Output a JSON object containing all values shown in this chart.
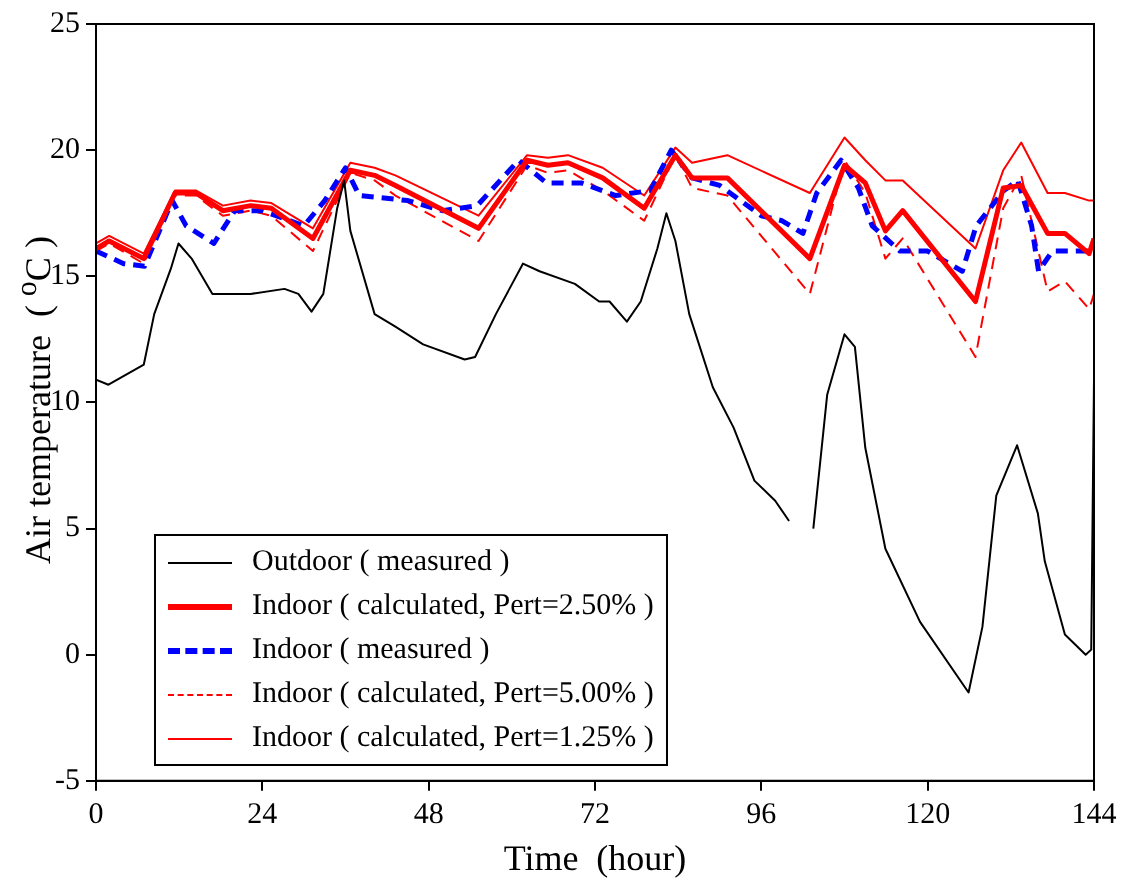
{
  "chart_data": {
    "type": "line",
    "xlabel": "Time  (hour)",
    "ylabel": "Air temperature  ( $^{o}$C )",
    "xlim": [
      0,
      144
    ],
    "xticks": [
      0,
      24,
      48,
      72,
      96,
      120,
      144
    ],
    "ylim": [
      -5,
      25
    ],
    "yticks": [
      -5,
      0,
      5,
      10,
      15,
      20,
      25
    ],
    "grid": false,
    "legend": "bottom left",
    "marker": "none",
    "series": [
      {
        "name": "Outdoor ( measured )",
        "color": "#000000",
        "line_style": "solid",
        "x": [
          0,
          1.8,
          6.9,
          8.4,
          10.8,
          11.9,
          13.8,
          16.8,
          22.3,
          27.2,
          29.2,
          31.1,
          32.8,
          34.8,
          35.8,
          36.7,
          40.2,
          43.2,
          47.2,
          53.2,
          54.7,
          57.7,
          61.6,
          64,
          69.1,
          72.6,
          74.1,
          76.6,
          78.6,
          81,
          82.3,
          83.6,
          85.6,
          89,
          92,
          95,
          98,
          100,
          101,
          103.5,
          105.5,
          108,
          109.5,
          111,
          113.9,
          118.9,
          125.9,
          127.9,
          129.9,
          132.9,
          135.9,
          136.9,
          139.8,
          142.8,
          143.6,
          144
        ],
        "values": [
          10.9,
          10.7,
          11.5,
          13.5,
          15.3,
          16.3,
          15.7,
          14.3,
          14.3,
          14.5,
          14.3,
          13.6,
          14.3,
          17.7,
          18.8,
          16.8,
          13.5,
          13,
          12.3,
          11.7,
          11.8,
          13.5,
          15.5,
          15.2,
          14.7,
          14,
          14,
          13.2,
          14,
          16.1,
          17.5,
          16.4,
          13.5,
          10.6,
          9,
          6.9,
          6.1,
          5.3,
          null,
          5,
          10.3,
          12.7,
          12.2,
          8.2,
          4.2,
          1.3,
          -1.5,
          1.1,
          6.3,
          8.3,
          5.6,
          3.7,
          0.8,
          0,
          0.2,
          10.9
        ]
      },
      {
        "name": "Indoor ( calculated, Pert=2.50% )",
        "color": "#ff0000",
        "line_style": "solid",
        "x": [
          0,
          1.9,
          6.9,
          11.4,
          14.4,
          18.3,
          22.3,
          25.3,
          31.3,
          36.7,
          40.2,
          43.2,
          55.2,
          62.2,
          65.2,
          68.1,
          73.1,
          79.1,
          83.6,
          86,
          91.1,
          103,
          108,
          111,
          113.9,
          116.4,
          126.9,
          130.9,
          133.5,
          137.3,
          139.8,
          143.3,
          144
        ],
        "values": [
          16.1,
          16.4,
          15.7,
          18.3,
          18.3,
          17.6,
          17.8,
          17.7,
          16.5,
          19.2,
          19,
          18.6,
          16.9,
          19.6,
          19.4,
          19.5,
          18.9,
          17.7,
          19.8,
          18.9,
          18.9,
          15.7,
          19.4,
          18.7,
          16.8,
          17.6,
          14,
          18.5,
          18.6,
          16.7,
          16.7,
          15.9,
          16.5
        ]
      },
      {
        "name": "Indoor ( measured )",
        "color": "#0000ff",
        "line_style": "dashed",
        "x": [
          0,
          4,
          7,
          11,
          13,
          17,
          20,
          24,
          30,
          33,
          36,
          38,
          45,
          50,
          55,
          61,
          65,
          70,
          75,
          80,
          83,
          86,
          90,
          96,
          99,
          102,
          104,
          107.5,
          110,
          112,
          116,
          120,
          125,
          127,
          131,
          133,
          135,
          136,
          138,
          144
        ],
        "values": [
          16,
          15.5,
          15.4,
          18,
          17,
          16.3,
          17.6,
          17.6,
          17,
          18,
          19.3,
          18.2,
          18,
          17.6,
          17.8,
          19.6,
          18.7,
          18.7,
          18.2,
          18.4,
          20,
          18.9,
          18.6,
          17.4,
          17.2,
          16.7,
          18.3,
          19.6,
          18.5,
          17,
          16,
          16,
          15.2,
          17,
          18.4,
          18.8,
          17,
          15.2,
          16,
          16
        ]
      },
      {
        "name": "Indoor ( calculated, Pert=5.00% )",
        "color": "#ff0000",
        "line_style": "dashed",
        "x": [
          0,
          1.9,
          6.9,
          11.4,
          14.4,
          18.3,
          22.3,
          25.3,
          31.3,
          36.7,
          40.2,
          43.2,
          55.2,
          62.2,
          65.2,
          68.1,
          73.1,
          79.1,
          83.6,
          86,
          91.1,
          103,
          108,
          111,
          113.9,
          116.4,
          126.9,
          130.9,
          133.5,
          137.3,
          139.8,
          143.3,
          144
        ],
        "values": [
          16,
          16.3,
          15.5,
          18.2,
          18.2,
          17.4,
          17.6,
          17.4,
          16,
          19.1,
          18.8,
          18.2,
          16.4,
          19.4,
          19.1,
          19.2,
          18.4,
          17.2,
          19.8,
          18.5,
          18.2,
          14.3,
          19.6,
          18.3,
          15.7,
          16.5,
          11.8,
          17.7,
          19,
          14.4,
          14.8,
          13.7,
          14.3
        ]
      },
      {
        "name": "Indoor ( calculated, Pert=1.25% )",
        "color": "#ff0000",
        "line_style": "solid",
        "x": [
          0,
          1.9,
          6.9,
          11.4,
          14.4,
          18.3,
          22.3,
          25.3,
          31.3,
          36.7,
          40.2,
          43.2,
          55.2,
          62.2,
          65.2,
          68.1,
          73.1,
          79.1,
          83.6,
          86,
          91.1,
          103,
          108,
          111,
          113.9,
          116.4,
          126.9,
          130.9,
          133.5,
          137.3,
          139.8,
          143.3,
          144
        ],
        "values": [
          16.3,
          16.6,
          15.9,
          18.4,
          18.4,
          17.8,
          18,
          17.9,
          16.9,
          19.5,
          19.3,
          19,
          17.4,
          19.8,
          19.7,
          19.8,
          19.3,
          18.2,
          20.1,
          19.5,
          19.8,
          18.3,
          20.5,
          19.6,
          18.8,
          18.8,
          16.1,
          19.2,
          20.3,
          18.3,
          18.3,
          18,
          18
        ]
      }
    ]
  }
}
